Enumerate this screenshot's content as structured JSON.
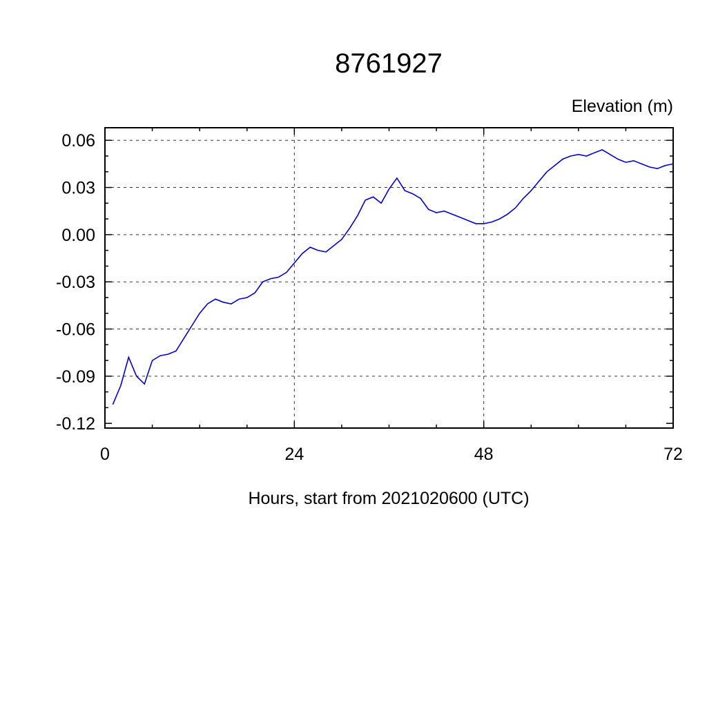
{
  "chart_data": {
    "type": "line",
    "title": "8761927",
    "ylabel": "Elevation (m)",
    "xlabel": "Hours, start from 2021020600 (UTC)",
    "xlim": [
      0,
      72
    ],
    "ylim": [
      -0.123,
      0.068
    ],
    "xticks": [
      0,
      24,
      48,
      72
    ],
    "xtick_labels": [
      "0",
      "24",
      "48",
      "72"
    ],
    "yticks": [
      0.06,
      0.03,
      0.0,
      -0.03,
      -0.06,
      -0.09,
      -0.12
    ],
    "ytick_labels": [
      "0.06",
      "0.03",
      "0.00",
      "-0.03",
      "-0.06",
      "-0.09",
      "-0.12"
    ],
    "x_minor_step": 6,
    "y_minor_step": 0.01,
    "grid": true,
    "legend_position": "none",
    "line_color": "#0000cd",
    "series": [
      {
        "name": "elevation",
        "x": [
          1,
          2,
          3,
          4,
          5,
          6,
          7,
          8,
          9,
          10,
          11,
          12,
          13,
          14,
          15,
          16,
          17,
          18,
          19,
          20,
          21,
          22,
          23,
          24,
          25,
          26,
          27,
          28,
          29,
          30,
          31,
          32,
          33,
          34,
          35,
          36,
          37,
          38,
          39,
          40,
          41,
          42,
          43,
          44,
          45,
          46,
          47,
          48,
          49,
          50,
          51,
          52,
          53,
          54,
          55,
          56,
          57,
          58,
          59,
          60,
          61,
          62,
          63,
          64,
          65,
          66,
          67,
          68,
          69,
          70,
          71,
          72
        ],
        "y": [
          -0.108,
          -0.096,
          -0.078,
          -0.09,
          -0.095,
          -0.08,
          -0.077,
          -0.076,
          -0.074,
          -0.066,
          -0.058,
          -0.05,
          -0.044,
          -0.041,
          -0.043,
          -0.044,
          -0.041,
          -0.04,
          -0.037,
          -0.03,
          -0.028,
          -0.027,
          -0.024,
          -0.018,
          -0.012,
          -0.008,
          -0.01,
          -0.011,
          -0.007,
          -0.003,
          0.004,
          0.012,
          0.022,
          0.024,
          0.02,
          0.029,
          0.036,
          0.028,
          0.026,
          0.023,
          0.016,
          0.014,
          0.015,
          0.013,
          0.011,
          0.009,
          0.007,
          0.007,
          0.008,
          0.01,
          0.013,
          0.017,
          0.023,
          0.028,
          0.034,
          0.04,
          0.044,
          0.048,
          0.05,
          0.051,
          0.05,
          0.052,
          0.054,
          0.051,
          0.048,
          0.046,
          0.047,
          0.045,
          0.043,
          0.042,
          0.044,
          0.045
        ]
      }
    ]
  }
}
